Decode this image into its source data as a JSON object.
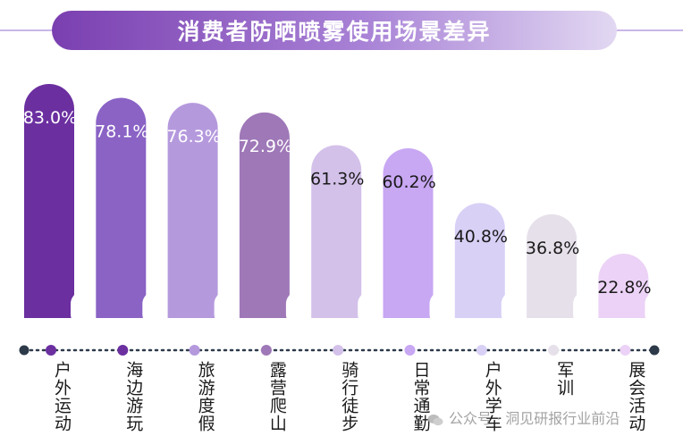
{
  "chart_data": {
    "type": "bar",
    "title": "消费者防晒喷雾使用场景差异",
    "categories": [
      "户外运动",
      "海边游玩",
      "旅游度假",
      "露营爬山",
      "骑行徒步",
      "日常通勤",
      "户外学车",
      "军训",
      "展会活动"
    ],
    "values": [
      83.0,
      78.1,
      76.3,
      72.9,
      61.3,
      60.2,
      40.8,
      36.8,
      22.8
    ],
    "value_labels": [
      "83.0%",
      "78.1%",
      "76.3%",
      "72.9%",
      "61.3%",
      "60.2%",
      "40.8%",
      "36.8%",
      "22.8%"
    ],
    "ylim": [
      0,
      100
    ],
    "xlabel": "",
    "ylabel": "",
    "bar_colors": [
      "#6b2fa0",
      "#8a63c5",
      "#b599dd",
      "#9f78b8",
      "#d3c1ea",
      "#c8a7f3",
      "#d9d0f6",
      "#e6e0ea",
      "#ecd2f6"
    ],
    "label_colors": [
      "#ffffff",
      "#ffffff",
      "#ffffff",
      "#ffffff",
      "#1a1a1a",
      "#1a1a1a",
      "#1a1a1a",
      "#1a1a1a",
      "#1a1a1a"
    ],
    "dot_colors": [
      "#6b2fa0",
      "#6b2fa0",
      "#b599dd",
      "#9f78b8",
      "#d3c1ea",
      "#c8a7f3",
      "#d9d0f6",
      "#e6e0ea",
      "#ecd2f6"
    ],
    "axis_end_color": "#2d3a4a"
  },
  "watermark": "公众号 · 洞见研报行业前沿"
}
